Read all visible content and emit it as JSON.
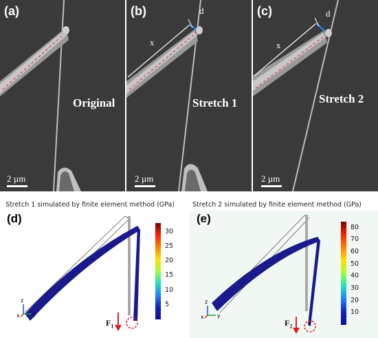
{
  "panels": {
    "a": {
      "label": "(a)",
      "text": "Original",
      "scale": "2 µm"
    },
    "b": {
      "label": "(b)",
      "text": "Stretch 1",
      "scale": "2 µm",
      "d_label": "d",
      "x_label": "x"
    },
    "c": {
      "label": "(c)",
      "text": "Stretch 2",
      "scale": "2 µm",
      "d_label": "d",
      "x_label": "x"
    },
    "d": {
      "label": "(d)",
      "caption": "Stretch 1 simulated by finite element method (GPa)",
      "colorbar_ticks": [
        "30",
        "25",
        "20",
        "15",
        "10",
        "5"
      ],
      "colorbar_max": 33,
      "force_main": "F",
      "force_sub": "1",
      "axis_z": "z",
      "axis_x": "x",
      "axis_y": "y"
    },
    "e": {
      "label": "(e)",
      "caption": "Stretch 2 simulated by finite element method (GPa)",
      "colorbar_ticks": [
        "80",
        "70",
        "60",
        "50",
        "40",
        "30",
        "20",
        "10"
      ],
      "colorbar_max": 85,
      "force_main": "F",
      "force_sub": "2",
      "axis_z": "z",
      "axis_x": "x",
      "axis_y": "y"
    }
  },
  "colors": {
    "beam": "#1a1a8c",
    "sem_bg": "#3a3a3a",
    "force_arrow": "#d62020",
    "dashed_circle": "#d62020"
  }
}
